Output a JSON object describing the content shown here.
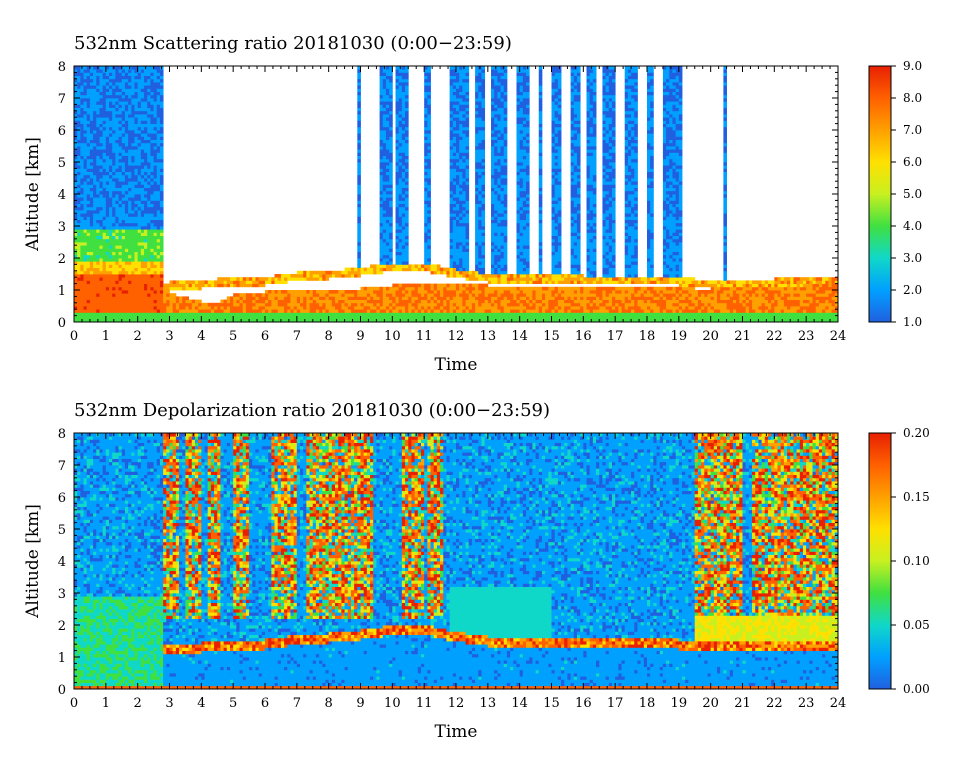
{
  "chart_data": [
    {
      "type": "heatmap",
      "title": "532nm Scattering ratio  20181030 (0:00−23:59)",
      "xlabel": "Time",
      "ylabel": "Altitude [km]",
      "xlim": [
        0,
        24
      ],
      "ylim": [
        0,
        8
      ],
      "xticks": [
        "0",
        "1",
        "2",
        "3",
        "4",
        "5",
        "6",
        "7",
        "8",
        "9",
        "10",
        "11",
        "12",
        "13",
        "14",
        "15",
        "16",
        "17",
        "18",
        "19",
        "20",
        "21",
        "22",
        "23",
        "24"
      ],
      "yticks": [
        "0",
        "1",
        "2",
        "3",
        "4",
        "5",
        "6",
        "7",
        "8"
      ],
      "colorbar": {
        "min": 1.0,
        "max": 9.0,
        "ticks": [
          "1.0",
          "2.0",
          "3.0",
          "4.0",
          "5.0",
          "6.0",
          "7.0",
          "8.0",
          "9.0"
        ],
        "colors": [
          "#2060e0",
          "#00a0ff",
          "#10d8c8",
          "#40e040",
          "#c8f020",
          "#ffe000",
          "#ffa000",
          "#ff6000",
          "#e82000"
        ]
      },
      "cloud_base_km": [
        [
          0,
          1.5
        ],
        [
          1,
          1.6
        ],
        [
          2,
          1.4
        ],
        [
          2.8,
          1.2
        ],
        [
          3,
          1.25
        ],
        [
          4,
          1.3
        ],
        [
          4.5,
          1.35
        ],
        [
          5,
          1.4
        ],
        [
          6,
          1.4
        ],
        [
          7,
          1.55
        ],
        [
          8,
          1.6
        ],
        [
          9,
          1.7
        ],
        [
          10,
          1.85
        ],
        [
          11,
          1.85
        ],
        [
          12,
          1.65
        ],
        [
          13,
          1.5
        ],
        [
          14,
          1.45
        ],
        [
          15,
          1.5
        ],
        [
          16,
          1.45
        ],
        [
          17,
          1.45
        ],
        [
          18,
          1.45
        ],
        [
          19,
          1.4
        ],
        [
          20,
          1.3
        ],
        [
          21,
          1.3
        ],
        [
          22,
          1.35
        ],
        [
          23,
          1.4
        ],
        [
          24,
          1.4
        ]
      ],
      "cloud_top_km": [
        [
          2.8,
          1.1
        ],
        [
          3,
          0.9
        ],
        [
          4,
          0.65
        ],
        [
          4.5,
          0.6
        ],
        [
          5,
          0.85
        ],
        [
          6,
          0.95
        ],
        [
          7,
          1.0
        ],
        [
          8,
          1.0
        ],
        [
          9,
          1.05
        ],
        [
          10,
          1.15
        ],
        [
          11,
          1.25
        ],
        [
          12,
          1.2
        ],
        [
          13,
          1.15
        ],
        [
          14,
          1.1
        ],
        [
          15,
          1.15
        ],
        [
          16,
          1.1
        ],
        [
          17,
          1.15
        ],
        [
          18,
          1.1
        ],
        [
          19,
          1.15
        ],
        [
          20,
          0.95
        ],
        [
          21,
          1.05
        ],
        [
          22,
          1.1
        ],
        [
          23,
          1.1
        ],
        [
          24,
          1.1
        ]
      ],
      "aerosol_layer_km": {
        "time": [
          0,
          2.8
        ],
        "top": 2.9,
        "value": 4.5
      },
      "cloud_columns_h": [
        [
          0,
          2.8
        ],
        [
          8.9,
          8.95
        ],
        [
          9.6,
          10.0
        ],
        [
          10.1,
          10.5
        ],
        [
          11.0,
          11.15
        ],
        [
          11.8,
          12.4
        ],
        [
          12.6,
          12.9
        ],
        [
          13.1,
          13.6
        ],
        [
          13.9,
          14.3
        ],
        [
          14.6,
          14.7
        ],
        [
          15.0,
          15.3
        ],
        [
          15.6,
          15.9
        ],
        [
          16.1,
          16.4
        ],
        [
          16.6,
          17.0
        ],
        [
          17.3,
          17.7
        ],
        [
          18.0,
          18.2
        ],
        [
          18.5,
          19.1
        ],
        [
          20.4,
          20.45
        ]
      ]
    },
    {
      "type": "heatmap",
      "title": "532nm Depolarization ratio  20181030 (0:00−23:59)",
      "xlabel": "Time",
      "ylabel": "Altitude [km]",
      "xlim": [
        0,
        24
      ],
      "ylim": [
        0,
        8
      ],
      "xticks": [
        "0",
        "1",
        "2",
        "3",
        "4",
        "5",
        "6",
        "7",
        "8",
        "9",
        "10",
        "11",
        "12",
        "13",
        "14",
        "15",
        "16",
        "17",
        "18",
        "19",
        "20",
        "21",
        "22",
        "23",
        "24"
      ],
      "yticks": [
        "0",
        "1",
        "2",
        "3",
        "4",
        "5",
        "6",
        "7",
        "8"
      ],
      "colorbar": {
        "min": 0.0,
        "max": 0.2,
        "ticks": [
          "0.00",
          "0.05",
          "0.10",
          "0.15",
          "0.20"
        ],
        "colors": [
          "#2060e0",
          "#00a0ff",
          "#10d8c8",
          "#40e040",
          "#c8f020",
          "#ffe000",
          "#ffa000",
          "#ff6000",
          "#e82000"
        ]
      },
      "high_noise_intervals_h": [
        [
          2.8,
          3.3
        ],
        [
          3.5,
          4.0
        ],
        [
          4.2,
          4.6
        ],
        [
          5.0,
          5.5
        ],
        [
          6.2,
          7.0
        ],
        [
          7.3,
          8.0
        ],
        [
          8.0,
          9.4
        ],
        [
          10.3,
          11.0
        ],
        [
          11.1,
          11.6
        ],
        [
          19.5,
          21.0
        ],
        [
          21.3,
          24.0
        ]
      ],
      "aerosol_layer_km": {
        "time": [
          0,
          2.8
        ],
        "top": 2.9,
        "value": 0.06
      },
      "depol_layer_km": {
        "time": [
          19.5,
          24
        ],
        "bottom": 1.5,
        "top": 2.3,
        "value": 0.11
      }
    }
  ]
}
